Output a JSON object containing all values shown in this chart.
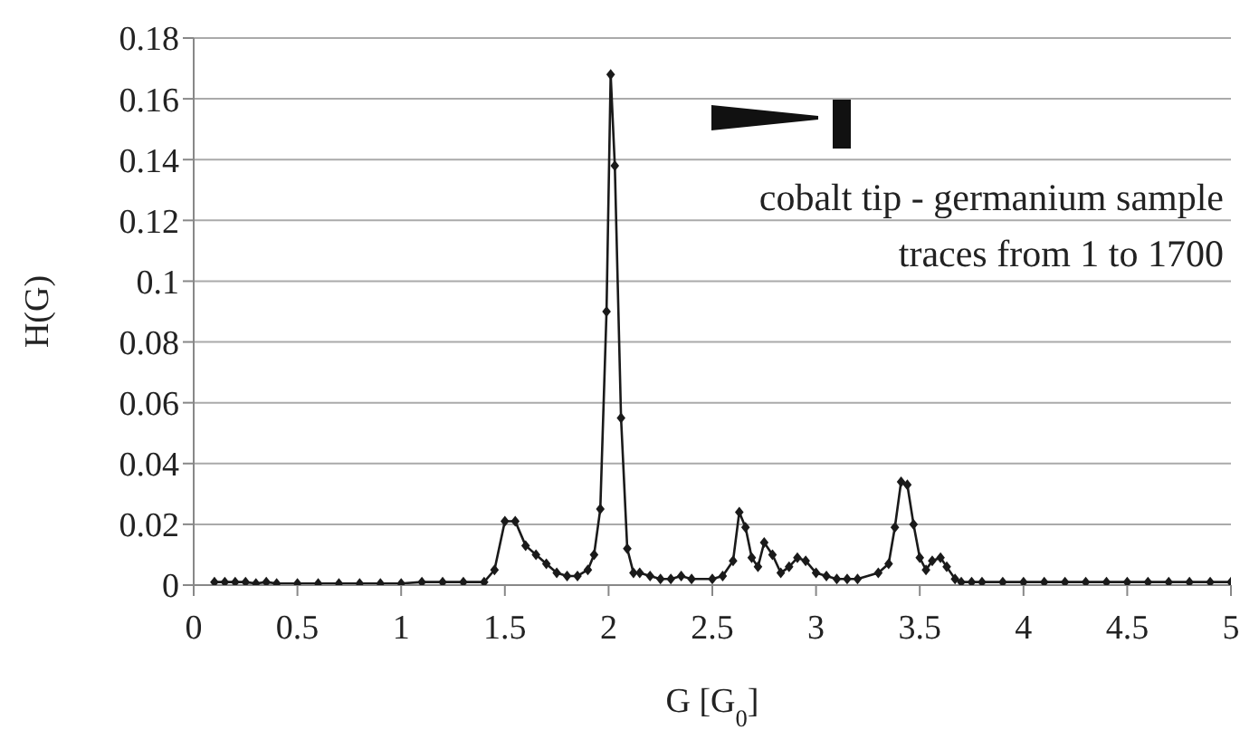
{
  "chart_data": {
    "type": "line",
    "xlabel": "G [G$_{0}$]",
    "ylabel": "H(G)",
    "annotations": [
      "cobalt tip - germanium sample",
      "traces from  1  to  1700"
    ],
    "x": [
      0.1,
      0.15,
      0.2,
      0.25,
      0.3,
      0.35,
      0.4,
      0.5,
      0.6,
      0.7,
      0.8,
      0.9,
      1.0,
      1.1,
      1.2,
      1.3,
      1.4,
      1.45,
      1.5,
      1.55,
      1.6,
      1.65,
      1.7,
      1.75,
      1.8,
      1.85,
      1.9,
      1.93,
      1.96,
      1.99,
      2.01,
      2.03,
      2.06,
      2.09,
      2.12,
      2.15,
      2.2,
      2.25,
      2.3,
      2.35,
      2.4,
      2.5,
      2.55,
      2.6,
      2.63,
      2.66,
      2.69,
      2.72,
      2.75,
      2.79,
      2.83,
      2.87,
      2.91,
      2.95,
      3.0,
      3.05,
      3.1,
      3.15,
      3.2,
      3.3,
      3.35,
      3.38,
      3.41,
      3.44,
      3.47,
      3.5,
      3.53,
      3.56,
      3.6,
      3.63,
      3.67,
      3.7,
      3.75,
      3.8,
      3.9,
      4.0,
      4.1,
      4.2,
      4.3,
      4.4,
      4.5,
      4.6,
      4.7,
      4.8,
      4.9,
      5.0
    ],
    "series": [
      {
        "color": "#1a1a1a",
        "values": [
          0.001,
          0.001,
          0.001,
          0.001,
          0.0005,
          0.001,
          0.0005,
          0.0005,
          0.0005,
          0.0005,
          0.0005,
          0.0005,
          0.0005,
          0.001,
          0.001,
          0.001,
          0.001,
          0.005,
          0.021,
          0.021,
          0.013,
          0.01,
          0.007,
          0.004,
          0.003,
          0.003,
          0.005,
          0.01,
          0.025,
          0.09,
          0.168,
          0.138,
          0.055,
          0.012,
          0.004,
          0.004,
          0.003,
          0.002,
          0.002,
          0.003,
          0.002,
          0.002,
          0.003,
          0.008,
          0.024,
          0.019,
          0.009,
          0.006,
          0.014,
          0.01,
          0.004,
          0.006,
          0.009,
          0.008,
          0.004,
          0.003,
          0.002,
          0.002,
          0.002,
          0.004,
          0.007,
          0.019,
          0.034,
          0.033,
          0.02,
          0.009,
          0.005,
          0.008,
          0.009,
          0.006,
          0.002,
          0.001,
          0.001,
          0.001,
          0.001,
          0.001,
          0.001,
          0.001,
          0.001,
          0.001,
          0.001,
          0.001,
          0.001,
          0.001,
          0.001,
          0.001
        ]
      }
    ],
    "xlim": [
      0,
      5
    ],
    "xticks": [
      0,
      0.5,
      1,
      1.5,
      2,
      2.5,
      3,
      3.5,
      4,
      4.5,
      5
    ],
    "ylim": [
      0,
      0.18
    ],
    "yticks": [
      0,
      0.02,
      0.04,
      0.06,
      0.08,
      0.1,
      0.12,
      0.14,
      0.16,
      0.18
    ],
    "grid": "y",
    "marker": "diamond",
    "line_style": "solid"
  }
}
